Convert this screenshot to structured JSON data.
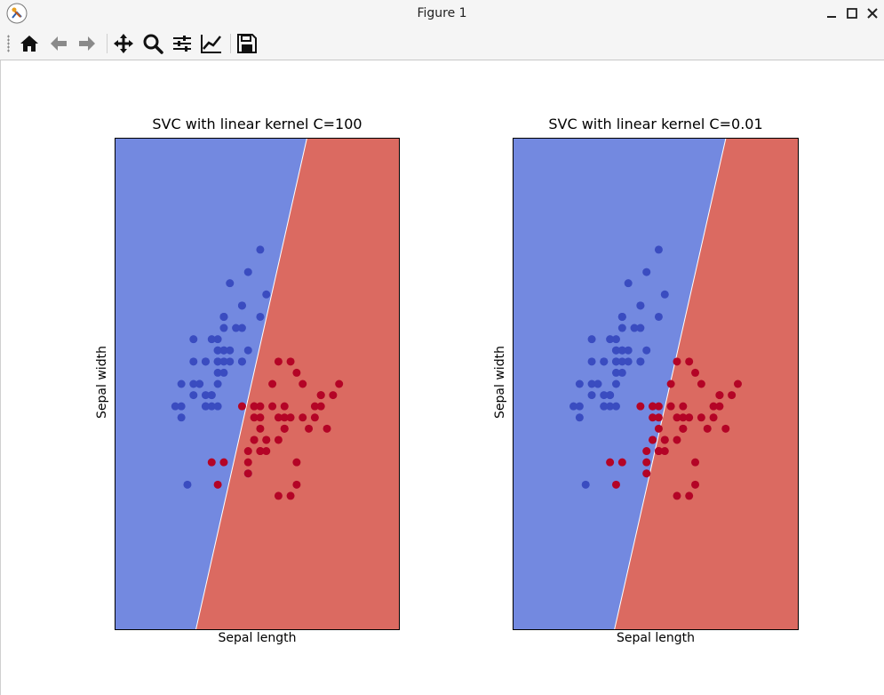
{
  "window": {
    "title": "Figure 1",
    "controls": [
      "minimize-icon",
      "maximize-icon",
      "close-icon"
    ]
  },
  "toolbar": {
    "tools": [
      {
        "name": "home-button",
        "icon": "home-icon"
      },
      {
        "name": "back-button",
        "icon": "arrow-left-icon"
      },
      {
        "name": "forward-button",
        "icon": "arrow-right-icon"
      },
      {
        "name": "pan-button",
        "icon": "move-icon"
      },
      {
        "name": "zoom-button",
        "icon": "magnifier-icon"
      },
      {
        "name": "configure-subplots-button",
        "icon": "sliders-icon"
      },
      {
        "name": "edit-axes-button",
        "icon": "chart-line-icon"
      },
      {
        "name": "save-button",
        "icon": "floppy-disk-icon"
      }
    ]
  },
  "colors": {
    "region_class0": "#7389e0",
    "region_class1": "#db6a61",
    "points_class0": "#3a4cc0",
    "points_class1": "#b40426"
  },
  "chart_data": [
    {
      "type": "scatter",
      "title": "SVC with linear kernel C=100",
      "xlabel": "Sepal length",
      "ylabel": "Sepal width",
      "xlim": [
        3.3,
        8.0
      ],
      "ylim": [
        1.0,
        5.4
      ],
      "ticks": "hidden",
      "decision_boundary": {
        "slope": 2.4,
        "intercept": -10.13
      },
      "series": [
        {
          "class": 0,
          "color": "#3a4cc0",
          "x": [
            5.1,
            4.9,
            4.7,
            4.6,
            5.0,
            5.4,
            4.6,
            5.0,
            4.4,
            4.9,
            5.4,
            4.8,
            4.8,
            4.3,
            5.8,
            5.7,
            5.4,
            5.1,
            5.7,
            5.1,
            5.4,
            5.1,
            4.6,
            5.1,
            4.8,
            5.0,
            5.0,
            5.2,
            5.2,
            4.7,
            4.8,
            5.4,
            5.2,
            5.5,
            4.9,
            5.0,
            5.5,
            4.9,
            4.4,
            5.1,
            5.0,
            4.5,
            4.4,
            5.0,
            5.1,
            4.8,
            5.1,
            4.6,
            5.3,
            5.0,
            5.5
          ],
          "y": [
            3.5,
            3.0,
            3.2,
            3.1,
            3.6,
            3.9,
            3.4,
            3.4,
            2.9,
            3.1,
            3.7,
            3.4,
            3.0,
            3.0,
            4.0,
            4.4,
            3.9,
            3.5,
            3.8,
            3.8,
            3.4,
            3.7,
            3.6,
            3.3,
            3.4,
            3.0,
            3.4,
            3.5,
            3.4,
            3.2,
            3.1,
            3.4,
            4.1,
            4.2,
            3.1,
            3.2,
            3.5,
            3.6,
            3.0,
            3.4,
            3.5,
            2.3,
            3.2,
            3.5,
            3.8,
            3.0,
            3.8,
            3.2,
            3.7,
            3.3,
            2.4
          ]
        },
        {
          "class": 1,
          "color": "#b40426",
          "x": [
            7.0,
            6.4,
            6.9,
            6.5,
            6.3,
            6.6,
            5.9,
            6.0,
            6.1,
            5.6,
            6.7,
            5.6,
            5.8,
            6.2,
            5.9,
            6.1,
            6.3,
            6.1,
            6.4,
            6.6,
            6.8,
            6.7,
            6.0,
            5.7,
            5.5,
            5.8,
            6.0,
            5.4,
            6.0,
            6.7,
            6.3,
            5.6,
            5.5,
            5.5,
            6.1,
            5.8,
            5.0,
            5.6,
            5.7,
            5.7,
            6.2,
            5.1,
            5.7,
            4.9,
            5.7,
            6.2,
            5.6
          ],
          "y": [
            3.2,
            3.2,
            3.1,
            2.8,
            3.3,
            2.9,
            3.0,
            2.2,
            2.9,
            2.9,
            3.1,
            3.0,
            2.7,
            2.2,
            3.2,
            2.8,
            2.5,
            2.8,
            2.9,
            3.0,
            2.8,
            3.0,
            2.9,
            2.6,
            2.4,
            2.7,
            2.7,
            3.0,
            3.4,
            3.1,
            2.3,
            3.0,
            2.5,
            2.6,
            3.0,
            2.6,
            2.3,
            2.7,
            3.0,
            2.9,
            2.9,
            2.5,
            2.8,
            2.5,
            2.6,
            3.4,
            2.7
          ]
        }
      ]
    },
    {
      "type": "scatter",
      "title": "SVC with linear kernel C=0.01",
      "xlabel": "Sepal length",
      "ylabel": "Sepal width",
      "xlim": [
        3.3,
        8.0
      ],
      "ylim": [
        1.0,
        5.4
      ],
      "ticks": "hidden",
      "decision_boundary": {
        "slope": 2.4,
        "intercept": -10.93
      },
      "series": [
        {
          "class": 0,
          "color": "#3a4cc0",
          "x": [
            5.1,
            4.9,
            4.7,
            4.6,
            5.0,
            5.4,
            4.6,
            5.0,
            4.4,
            4.9,
            5.4,
            4.8,
            4.8,
            4.3,
            5.8,
            5.7,
            5.4,
            5.1,
            5.7,
            5.1,
            5.4,
            5.1,
            4.6,
            5.1,
            4.8,
            5.0,
            5.0,
            5.2,
            5.2,
            4.7,
            4.8,
            5.4,
            5.2,
            5.5,
            4.9,
            5.0,
            5.5,
            4.9,
            4.4,
            5.1,
            5.0,
            4.5,
            4.4,
            5.0,
            5.1,
            4.8,
            5.1,
            4.6,
            5.3,
            5.0,
            5.5
          ],
          "y": [
            3.5,
            3.0,
            3.2,
            3.1,
            3.6,
            3.9,
            3.4,
            3.4,
            2.9,
            3.1,
            3.7,
            3.4,
            3.0,
            3.0,
            4.0,
            4.4,
            3.9,
            3.5,
            3.8,
            3.8,
            3.4,
            3.7,
            3.6,
            3.3,
            3.4,
            3.0,
            3.4,
            3.5,
            3.4,
            3.2,
            3.1,
            3.4,
            4.1,
            4.2,
            3.1,
            3.2,
            3.5,
            3.6,
            3.0,
            3.4,
            3.5,
            2.3,
            3.2,
            3.5,
            3.8,
            3.0,
            3.8,
            3.2,
            3.7,
            3.3,
            2.4
          ]
        },
        {
          "class": 1,
          "color": "#b40426",
          "x": [
            7.0,
            6.4,
            6.9,
            6.5,
            6.3,
            6.6,
            5.9,
            6.0,
            6.1,
            5.6,
            6.7,
            5.6,
            5.8,
            6.2,
            5.9,
            6.1,
            6.3,
            6.1,
            6.4,
            6.6,
            6.8,
            6.7,
            6.0,
            5.7,
            5.5,
            5.8,
            6.0,
            5.4,
            6.0,
            6.7,
            6.3,
            5.6,
            5.5,
            5.5,
            6.1,
            5.8,
            5.0,
            5.6,
            5.7,
            5.7,
            6.2,
            5.1,
            5.7,
            4.9,
            5.7,
            6.2,
            5.6
          ],
          "y": [
            3.2,
            3.2,
            3.1,
            2.8,
            3.3,
            2.9,
            3.0,
            2.2,
            2.9,
            2.9,
            3.1,
            3.0,
            2.7,
            2.2,
            3.2,
            2.8,
            2.5,
            2.8,
            2.9,
            3.0,
            2.8,
            3.0,
            2.9,
            2.6,
            2.4,
            2.7,
            2.7,
            3.0,
            3.4,
            3.1,
            2.3,
            3.0,
            2.5,
            2.6,
            3.0,
            2.6,
            2.3,
            2.7,
            3.0,
            2.9,
            2.9,
            2.5,
            2.8,
            2.5,
            2.6,
            3.4,
            2.7
          ]
        }
      ]
    }
  ]
}
